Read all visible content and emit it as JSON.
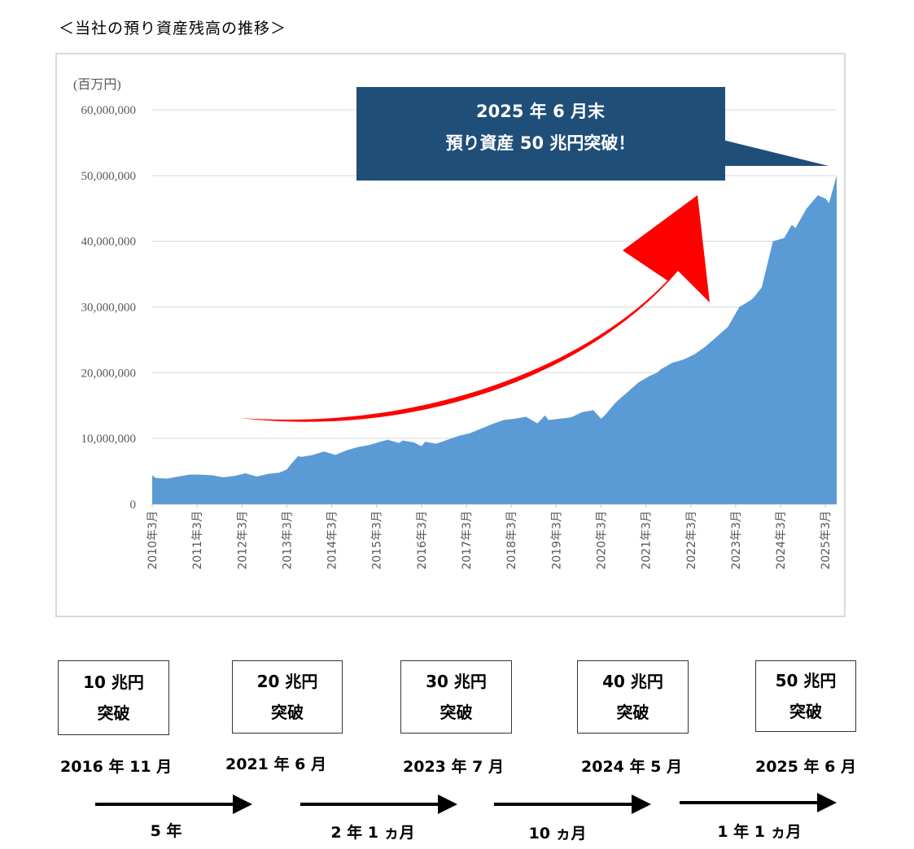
{
  "page_title": "＜当社の預り資産残高の推移＞",
  "chart_data": {
    "type": "area",
    "unit_label": "(百万円)",
    "ylim": [
      0,
      60000000
    ],
    "y_ticks": [
      "0",
      "10,000,000",
      "20,000,000",
      "30,000,000",
      "40,000,000",
      "50,000,000",
      "60,000,000"
    ],
    "x_ticks": [
      "2010年3月",
      "2011年3月",
      "2012年3月",
      "2013年3月",
      "2014年3月",
      "2015年3月",
      "2016年3月",
      "2017年3月",
      "2018年3月",
      "2019年3月",
      "2020年3月",
      "2021年3月",
      "2022年3月",
      "2023年3月",
      "2024年3月",
      "2025年3月"
    ],
    "grid": true,
    "legend": "none",
    "series": [
      {
        "color": "#5b9bd5",
        "x": [
          2010.17,
          2010.25,
          2010.5,
          2010.75,
          2011.0,
          2011.25,
          2011.5,
          2011.75,
          2012.0,
          2012.25,
          2012.5,
          2012.75,
          2013.0,
          2013.17,
          2013.25,
          2013.42,
          2013.5,
          2013.75,
          2014.0,
          2014.25,
          2014.5,
          2014.75,
          2015.0,
          2015.25,
          2015.42,
          2015.67,
          2015.75,
          2016.0,
          2016.17,
          2016.25,
          2016.5,
          2016.75,
          2016.83,
          2017.0,
          2017.25,
          2017.5,
          2017.75,
          2018.0,
          2018.25,
          2018.5,
          2018.75,
          2018.92,
          2019.0,
          2019.25,
          2019.5,
          2019.75,
          2020.0,
          2020.17,
          2020.25,
          2020.5,
          2020.75,
          2021.0,
          2021.25,
          2021.42,
          2021.5,
          2021.75,
          2022.0,
          2022.25,
          2022.5,
          2022.75,
          2023.0,
          2023.25,
          2023.5,
          2023.58,
          2023.75,
          2024.0,
          2024.25,
          2024.42,
          2024.5,
          2024.75,
          2025.0,
          2025.17,
          2025.25,
          2025.42
        ],
        "values": [
          4400000,
          4000000,
          3900000,
          4200000,
          4500000,
          4500000,
          4400000,
          4100000,
          4300000,
          4700000,
          4200000,
          4600000,
          4800000,
          5300000,
          6000000,
          7300000,
          7200000,
          7500000,
          8000000,
          7500000,
          8200000,
          8700000,
          9000000,
          9500000,
          9800000,
          9300000,
          9700000,
          9400000,
          8800000,
          9500000,
          9200000,
          9800000,
          10000000,
          10400000,
          10800000,
          11500000,
          12200000,
          12800000,
          13000000,
          13300000,
          12300000,
          13500000,
          12800000,
          13000000,
          13200000,
          14000000,
          14300000,
          13000000,
          13500000,
          15500000,
          17000000,
          18500000,
          19500000,
          20000000,
          20500000,
          21500000,
          22000000,
          22800000,
          24000000,
          25500000,
          27000000,
          30000000,
          31000000,
          31500000,
          33000000,
          40000000,
          40500000,
          42500000,
          42000000,
          45000000,
          47000000,
          46500000,
          45800000,
          50000000
        ]
      }
    ],
    "annotation": {
      "line1": "2025 年 6 月末",
      "line2": "預り資産 50 兆円突破！",
      "box_color": "#1f4e79",
      "arrow_color": "#ff0000"
    }
  },
  "milestones": [
    {
      "line1": "10 兆円",
      "line2": "突破",
      "date": "2016 年 11 月"
    },
    {
      "line1": "20 兆円",
      "line2": "突破",
      "date": "2021 年 6 月"
    },
    {
      "line1": "30 兆円",
      "line2": "突破",
      "date": "2023 年 7 月"
    },
    {
      "line1": "40 兆円",
      "line2": "突破",
      "date": "2024 年 5 月"
    },
    {
      "line1": "50 兆円",
      "line2": "突破",
      "date": "2025 年 6 月"
    }
  ],
  "intervals": [
    "5 年",
    "2 年 1 ヵ月",
    "10 ヵ月",
    "1 年 1 ヵ月"
  ]
}
